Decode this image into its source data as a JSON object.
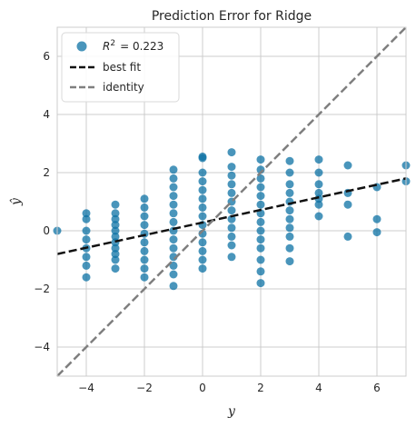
{
  "chart_data": {
    "type": "scatter",
    "title": "Prediction Error for Ridge",
    "xlabel": "y",
    "ylabel": "ŷ",
    "xlim": [
      -5,
      7
    ],
    "ylim": [
      -5,
      7
    ],
    "xticks": [
      -4,
      -2,
      0,
      2,
      4,
      6
    ],
    "yticks": [
      -4,
      -2,
      0,
      2,
      4,
      6
    ],
    "tick_labels": [
      "−4",
      "−2",
      "0",
      "2",
      "4",
      "6"
    ],
    "grid": true,
    "legend_position": "top-left",
    "legend": {
      "r2_label": "R² = 0.223",
      "r2_symbol": "R",
      "r2_sup": "2",
      "r2_value": "= 0.223",
      "best_fit_label": "best fit",
      "identity_label": "identity"
    },
    "series": [
      {
        "name": "R² = 0.223",
        "kind": "points",
        "color": "#0c72a4",
        "points": [
          [
            -5,
            0.0
          ],
          [
            -4,
            0.6
          ],
          [
            -4,
            0.4
          ],
          [
            -4,
            0.0
          ],
          [
            -4,
            -0.3
          ],
          [
            -4,
            -0.6
          ],
          [
            -4,
            -0.9
          ],
          [
            -4,
            -1.2
          ],
          [
            -4,
            -1.6
          ],
          [
            -3,
            0.9
          ],
          [
            -3,
            0.6
          ],
          [
            -3,
            0.4
          ],
          [
            -3,
            0.2
          ],
          [
            -3,
            0.0
          ],
          [
            -3,
            -0.2
          ],
          [
            -3,
            -0.4
          ],
          [
            -3,
            -0.6
          ],
          [
            -3,
            -0.8
          ],
          [
            -3,
            -1.0
          ],
          [
            -3,
            -1.3
          ],
          [
            -2,
            1.1
          ],
          [
            -2,
            0.8
          ],
          [
            -2,
            0.5
          ],
          [
            -2,
            0.2
          ],
          [
            -2,
            -0.1
          ],
          [
            -2,
            -0.4
          ],
          [
            -2,
            -0.7
          ],
          [
            -2,
            -1.0
          ],
          [
            -2,
            -1.3
          ],
          [
            -2,
            -1.6
          ],
          [
            -1,
            2.1
          ],
          [
            -1,
            1.8
          ],
          [
            -1,
            1.5
          ],
          [
            -1,
            1.2
          ],
          [
            -1,
            0.9
          ],
          [
            -1,
            0.6
          ],
          [
            -1,
            0.3
          ],
          [
            -1,
            0.0
          ],
          [
            -1,
            -0.3
          ],
          [
            -1,
            -0.6
          ],
          [
            -1,
            -0.9
          ],
          [
            -1,
            -1.2
          ],
          [
            -1,
            -1.5
          ],
          [
            -1,
            -1.9
          ],
          [
            0,
            2.55
          ],
          [
            0,
            2.5
          ],
          [
            0,
            2.0
          ],
          [
            0,
            1.7
          ],
          [
            0,
            1.4
          ],
          [
            0,
            1.1
          ],
          [
            0,
            0.8
          ],
          [
            0,
            0.5
          ],
          [
            0,
            0.2
          ],
          [
            0,
            -0.1
          ],
          [
            0,
            -0.4
          ],
          [
            0,
            -0.7
          ],
          [
            0,
            -1.0
          ],
          [
            0,
            -1.3
          ],
          [
            1,
            2.7
          ],
          [
            1,
            2.2
          ],
          [
            1,
            1.9
          ],
          [
            1,
            1.6
          ],
          [
            1,
            1.3
          ],
          [
            1,
            1.0
          ],
          [
            1,
            0.7
          ],
          [
            1,
            0.4
          ],
          [
            1,
            0.1
          ],
          [
            1,
            -0.2
          ],
          [
            1,
            -0.5
          ],
          [
            1,
            -0.9
          ],
          [
            2,
            2.45
          ],
          [
            2,
            2.1
          ],
          [
            2,
            1.8
          ],
          [
            2,
            1.5
          ],
          [
            2,
            1.2
          ],
          [
            2,
            0.9
          ],
          [
            2,
            0.6
          ],
          [
            2,
            0.3
          ],
          [
            2,
            0.0
          ],
          [
            2,
            -0.3
          ],
          [
            2,
            -0.6
          ],
          [
            2,
            -1.0
          ],
          [
            2,
            -1.4
          ],
          [
            2,
            -1.8
          ],
          [
            3,
            2.4
          ],
          [
            3,
            2.0
          ],
          [
            3,
            1.6
          ],
          [
            3,
            1.3
          ],
          [
            3,
            1.0
          ],
          [
            3,
            0.7
          ],
          [
            3,
            0.4
          ],
          [
            3,
            0.1
          ],
          [
            3,
            -0.2
          ],
          [
            3,
            -0.6
          ],
          [
            3,
            -1.05
          ],
          [
            4,
            2.45
          ],
          [
            4,
            2.0
          ],
          [
            4,
            1.6
          ],
          [
            4,
            1.3
          ],
          [
            4,
            1.1
          ],
          [
            4,
            0.9
          ],
          [
            4,
            0.5
          ],
          [
            5,
            2.25
          ],
          [
            5,
            1.3
          ],
          [
            5,
            0.9
          ],
          [
            5,
            -0.2
          ],
          [
            6,
            1.5
          ],
          [
            6,
            0.4
          ],
          [
            6,
            -0.05
          ],
          [
            7,
            2.25
          ],
          [
            7,
            1.7
          ]
        ]
      },
      {
        "name": "best fit",
        "kind": "line",
        "color": "#111111",
        "dash": "dashed",
        "from": [
          -5,
          -0.8
        ],
        "to": [
          7,
          1.8
        ]
      },
      {
        "name": "identity",
        "kind": "line",
        "color": "#7f7f7f",
        "dash": "dashed",
        "from": [
          -5,
          -5
        ],
        "to": [
          7,
          7
        ]
      }
    ]
  }
}
